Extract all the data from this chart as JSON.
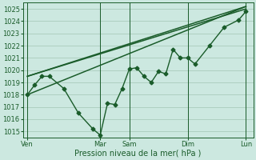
{
  "background_color": "#cce8e0",
  "grid_color": "#aaccbb",
  "line_color": "#1a5c2a",
  "xlabel": "Pression niveau de la mer( hPa )",
  "ylim": [
    1014.5,
    1025.5
  ],
  "yticks": [
    1015,
    1016,
    1017,
    1018,
    1019,
    1020,
    1021,
    1022,
    1023,
    1024,
    1025
  ],
  "xtick_labels": [
    "Ven",
    "",
    "Mar",
    "Sam",
    "",
    "Dim",
    "",
    "Lun"
  ],
  "xtick_major": [
    0,
    5,
    7,
    11,
    15
  ],
  "xtick_major_labels": [
    "Ven",
    "Mar",
    "Sam",
    "Dim",
    "Lun"
  ],
  "xlim": [
    -0.3,
    15.5
  ],
  "straight_lines": [
    {
      "x": [
        0,
        15
      ],
      "y": [
        1019.5,
        1025.0
      ]
    },
    {
      "x": [
        0,
        15
      ],
      "y": [
        1019.5,
        1025.2
      ]
    },
    {
      "x": [
        0,
        15
      ],
      "y": [
        1018.0,
        1025.2
      ]
    }
  ],
  "detail_line": {
    "x": [
      0,
      0.5,
      1.0,
      1.5,
      2.5,
      3.5,
      4.5,
      5.0,
      5.5,
      6.0,
      6.5,
      7.0,
      7.5,
      8.0,
      8.5,
      9.0,
      9.5,
      10.0,
      10.5,
      11.0,
      11.5,
      12.5,
      13.5,
      14.5,
      15.0
    ],
    "y": [
      1018.0,
      1018.8,
      1019.5,
      1019.5,
      1018.5,
      1016.5,
      1015.2,
      1014.7,
      1017.3,
      1017.2,
      1018.5,
      1020.1,
      1020.2,
      1019.5,
      1019.0,
      1019.9,
      1019.7,
      1021.7,
      1021.0,
      1021.0,
      1020.5,
      1022.0,
      1023.5,
      1024.1,
      1024.8
    ],
    "marker": "D",
    "markersize": 2.5,
    "linewidth": 1.0
  }
}
